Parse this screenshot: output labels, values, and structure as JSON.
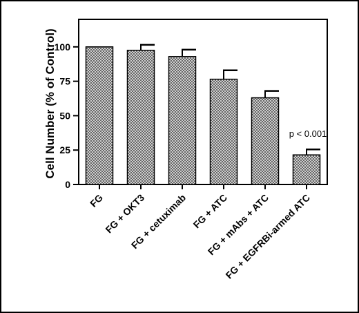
{
  "chart_data": {
    "type": "bar",
    "categories": [
      "FG",
      "FG + OKT3",
      "FG + cetuximab",
      "FG + ATC",
      "FG + mAbs + ATC",
      "FG + EGFRBi-armed ATC"
    ],
    "values": [
      100,
      97.5,
      93,
      76.5,
      63,
      21.5
    ],
    "errors": [
      0,
      4,
      5,
      6.5,
      5,
      4
    ],
    "title": "",
    "xlabel": "",
    "ylabel": "Cell Number (% of Control)",
    "ylim": [
      0,
      120
    ],
    "yticks": [
      0,
      25,
      50,
      75,
      100
    ],
    "grid": false,
    "annotations": [
      {
        "text": "p < 0.001",
        "category_index": 5
      }
    ]
  },
  "colors": {
    "bar_fill_pattern": "crosshatch",
    "bar_stroke": "#000000",
    "axis": "#000000"
  }
}
